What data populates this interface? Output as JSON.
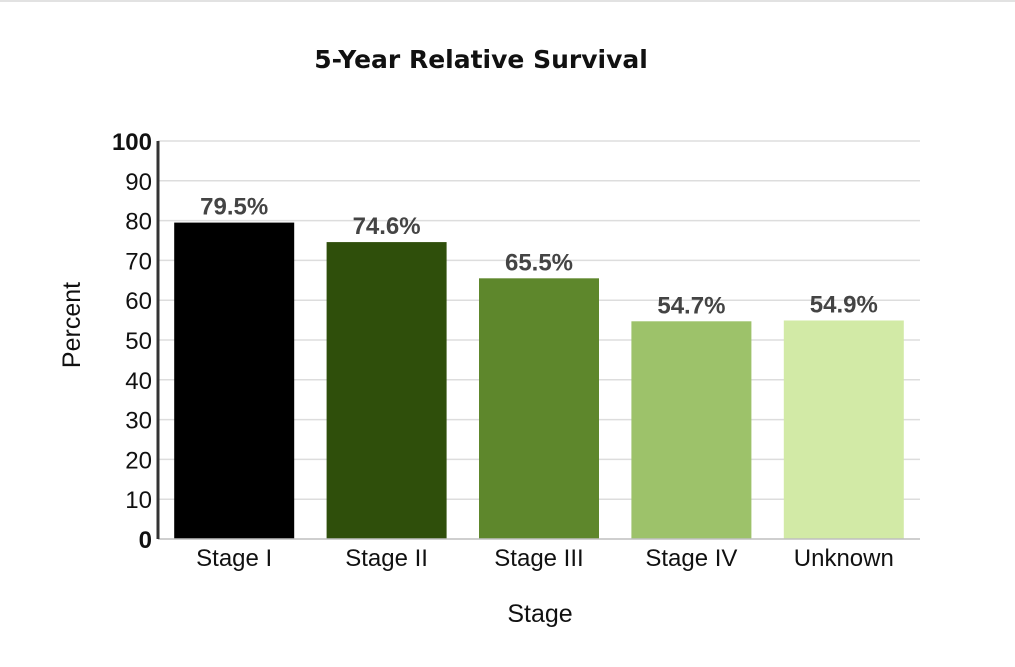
{
  "chart_data": {
    "type": "bar",
    "title": "5-Year Relative Survival",
    "xlabel": "Stage",
    "ylabel": "Percent",
    "categories": [
      "Stage I",
      "Stage II",
      "Stage III",
      "Stage IV",
      "Unknown"
    ],
    "values": [
      79.5,
      74.6,
      65.5,
      54.7,
      54.9
    ],
    "data_labels": [
      "79.5%",
      "74.6%",
      "65.5%",
      "54.7%",
      "54.9%"
    ],
    "colors": [
      "#000000",
      "#2f4f0b",
      "#5e872c",
      "#9dc26a",
      "#d2eaa6"
    ],
    "ylim": [
      0,
      100
    ],
    "yticks": [
      0,
      10,
      20,
      30,
      40,
      50,
      60,
      70,
      80,
      90,
      100
    ],
    "ytick_labels": [
      "0",
      "10",
      "20",
      "30",
      "40",
      "50",
      "60",
      "70",
      "80",
      "90",
      "100"
    ],
    "grid": true,
    "legend": "none"
  }
}
